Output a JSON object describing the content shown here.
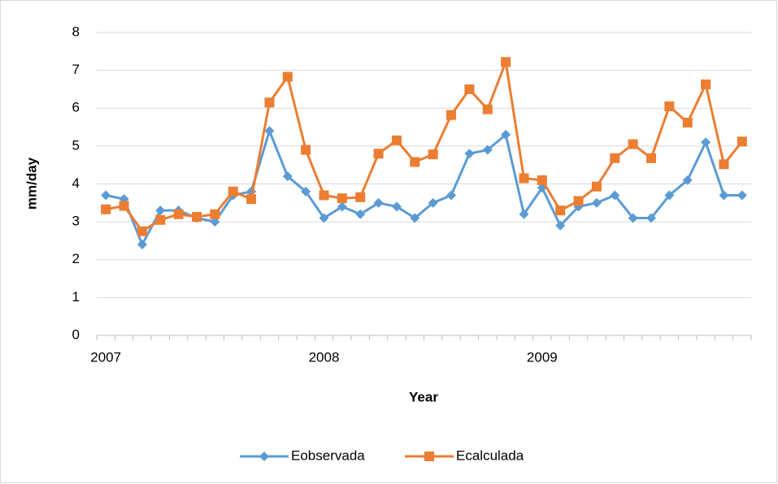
{
  "chart_data": {
    "type": "line",
    "y_label": "mm/day",
    "x_label": "Year",
    "categories": [
      "2007",
      null,
      null,
      null,
      null,
      null,
      null,
      null,
      null,
      null,
      null,
      null,
      "2008",
      null,
      null,
      null,
      null,
      null,
      null,
      null,
      null,
      null,
      null,
      null,
      "2009",
      null,
      null,
      null,
      null,
      null,
      null,
      null,
      null,
      null,
      null,
      null
    ],
    "series": [
      {
        "name": "Eobservada",
        "color": "#5b9bd5",
        "marker": "diamond",
        "values": [
          3.7,
          3.6,
          2.4,
          3.3,
          3.3,
          3.1,
          3.0,
          3.7,
          3.8,
          5.4,
          4.2,
          3.8,
          3.1,
          3.4,
          3.2,
          3.5,
          3.4,
          3.1,
          3.5,
          3.7,
          4.8,
          4.9,
          5.3,
          3.2,
          3.9,
          2.9,
          3.4,
          3.5,
          3.7,
          3.1,
          3.1,
          3.7,
          4.1,
          5.1,
          3.7,
          3.7
        ]
      },
      {
        "name": "Ecalculada",
        "color": "#ed7d31",
        "marker": "square",
        "values": [
          3.33,
          3.42,
          2.75,
          3.05,
          3.2,
          3.13,
          3.2,
          3.8,
          3.6,
          6.15,
          6.83,
          4.9,
          3.7,
          3.62,
          3.65,
          4.8,
          5.15,
          4.58,
          4.78,
          5.82,
          6.5,
          5.97,
          7.22,
          4.15,
          4.1,
          3.3,
          3.55,
          3.93,
          4.68,
          5.05,
          4.68,
          6.05,
          5.62,
          6.63,
          4.52,
          5.12
        ]
      }
    ],
    "ylim": [
      0,
      8
    ],
    "yticks": [
      0,
      1,
      2,
      3,
      4,
      5,
      6,
      7,
      8
    ],
    "grid": true,
    "legend": "bottom"
  }
}
